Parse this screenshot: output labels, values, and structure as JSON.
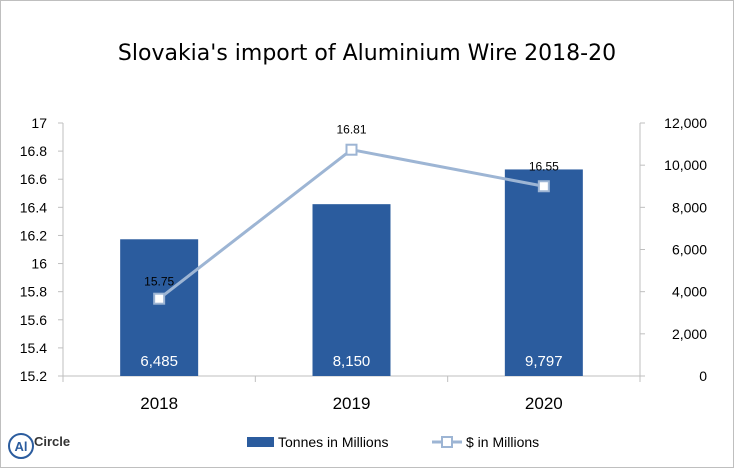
{
  "chart_data": {
    "type": "bar",
    "title": "Slovakia's import of Aluminium Wire 2018-20",
    "categories": [
      "2018",
      "2019",
      "2020"
    ],
    "series": [
      {
        "name": "Tonnes in Millions",
        "type": "bar",
        "axis": "right",
        "values": [
          6485,
          8150,
          9797
        ],
        "labels": [
          "6,485",
          "8,150",
          "9,797"
        ],
        "color": "#2b5c9e"
      },
      {
        "name": "$ in Millions",
        "type": "line",
        "axis": "left",
        "values": [
          15.75,
          16.81,
          16.55
        ],
        "labels": [
          "15.75",
          "16.81",
          "16.55"
        ],
        "color": "#9db5d4"
      }
    ],
    "y_left": {
      "min": 15.2,
      "max": 17,
      "ticks": [
        "17",
        "16.8",
        "16.6",
        "16.4",
        "16.2",
        "16",
        "15.8",
        "15.6",
        "15.4",
        "15.2"
      ]
    },
    "y_right": {
      "min": 0,
      "max": 12000,
      "ticks": [
        "12,000",
        "10,000",
        "8,000",
        "6,000",
        "4,000",
        "2,000",
        "0"
      ]
    },
    "legend_position": "bottom",
    "grid": false
  },
  "logo": {
    "text": "Circle",
    "mark": "Al"
  }
}
